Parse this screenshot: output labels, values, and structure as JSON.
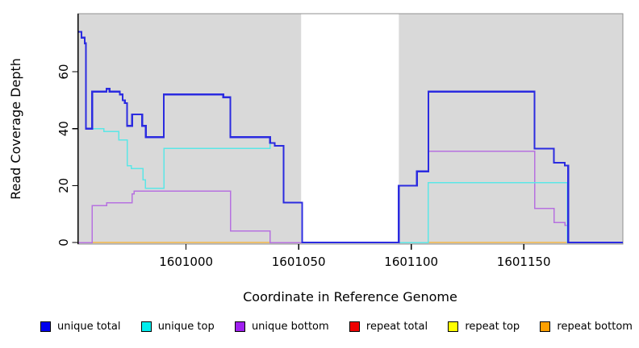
{
  "figure": {
    "xlabel": "Coordinate in Reference Genome",
    "ylabel": "Read Coverage Depth"
  },
  "chart_data": {
    "type": "line",
    "subtype": "step-after",
    "title": "",
    "xlabel": "Coordinate in Reference Genome",
    "ylabel": "Read Coverage Depth",
    "xlim": [
      1600952,
      1601194
    ],
    "ylim": [
      0,
      80
    ],
    "x_ticks": [
      1601000,
      1601050,
      1601100,
      1601150
    ],
    "y_ticks": [
      0,
      20,
      40,
      60
    ],
    "grid": false,
    "legend_position": "bottom",
    "background": {
      "page_bg": "#ffffff",
      "plot_bg": "#d9d9d9",
      "gap_region": [
        1601051.1,
        1601094.5
      ],
      "gap_color": "#ffffff",
      "border_color": "#8f8f8f",
      "axis_color": "#000000",
      "tick_label_color": "#000000"
    },
    "series": [
      {
        "name": "repeat total",
        "color": "#ee0000",
        "line_width": 1.4,
        "x_end": 1601194,
        "points": [
          [
            1600958.3,
            0
          ]
        ]
      },
      {
        "name": "repeat top",
        "color": "#ffee00",
        "line_width": 1.4,
        "x_end": 1601194,
        "points": [
          [
            1600958.3,
            0
          ]
        ]
      },
      {
        "name": "repeat bottom",
        "color": "#ffa500",
        "line_width": 1.4,
        "x_end": 1601194,
        "points": [
          [
            1600958.3,
            0
          ]
        ]
      },
      {
        "name": "unique bottom",
        "color": "#b671e0",
        "line_width": 1.5,
        "x_end": 1601194,
        "points": [
          [
            1600952,
            0
          ],
          [
            1600958.3,
            13
          ],
          [
            1600964.7,
            14
          ],
          [
            1600976,
            17
          ],
          [
            1600977,
            18
          ],
          [
            1601019.7,
            4
          ],
          [
            1601037.3,
            0
          ],
          [
            1601094.5,
            20
          ],
          [
            1601102.5,
            25
          ],
          [
            1601107.6,
            32
          ],
          [
            1601154.8,
            12
          ],
          [
            1601163.4,
            7
          ],
          [
            1601168.2,
            6
          ],
          [
            1601169.7,
            0
          ]
        ]
      },
      {
        "name": "unique top",
        "color": "#5ce6e6",
        "line_width": 1.5,
        "x_end": 1601194,
        "points": [
          [
            1600952,
            74
          ],
          [
            1600953.5,
            72
          ],
          [
            1600955,
            70
          ],
          [
            1600955.5,
            40
          ],
          [
            1600963.5,
            39
          ],
          [
            1600970.2,
            36
          ],
          [
            1600973.8,
            27
          ],
          [
            1600975.7,
            26
          ],
          [
            1600980.9,
            22
          ],
          [
            1600982,
            19
          ],
          [
            1600990.1,
            33
          ],
          [
            1601037.3,
            35
          ],
          [
            1601039.4,
            34
          ],
          [
            1601043.3,
            14
          ],
          [
            1601051.6,
            0
          ],
          [
            1601107.6,
            21
          ],
          [
            1601169.4,
            0
          ]
        ]
      },
      {
        "name": "unique total",
        "color": "#2b2be0",
        "line_width": 2.2,
        "x_end": 1601194,
        "points": [
          [
            1600952,
            74
          ],
          [
            1600953.5,
            72
          ],
          [
            1600955,
            70
          ],
          [
            1600955.5,
            40
          ],
          [
            1600958.3,
            53
          ],
          [
            1600964.7,
            54
          ],
          [
            1600966,
            53
          ],
          [
            1600970.6,
            52
          ],
          [
            1600971.8,
            50
          ],
          [
            1600972.8,
            49
          ],
          [
            1600973.8,
            41
          ],
          [
            1600976,
            45
          ],
          [
            1600980.5,
            41
          ],
          [
            1600982.1,
            37
          ],
          [
            1600990.1,
            52
          ],
          [
            1601016.5,
            51
          ],
          [
            1601019.7,
            37
          ],
          [
            1601037.3,
            35
          ],
          [
            1601039.4,
            34
          ],
          [
            1601043.3,
            14
          ],
          [
            1601051.6,
            0
          ],
          [
            1601094.5,
            20
          ],
          [
            1601102.5,
            25
          ],
          [
            1601107.6,
            53
          ],
          [
            1601154.8,
            33
          ],
          [
            1601163.4,
            28
          ],
          [
            1601168.2,
            27
          ],
          [
            1601169.7,
            0
          ]
        ]
      }
    ]
  },
  "legend": {
    "items": [
      {
        "label": "unique total",
        "color": "#0000ee"
      },
      {
        "label": "unique top",
        "color": "#00eeee"
      },
      {
        "label": "unique bottom",
        "color": "#a020f0"
      },
      {
        "label": "repeat total",
        "color": "#ee0000"
      },
      {
        "label": "repeat top",
        "color": "#ffff00"
      },
      {
        "label": "repeat bottom",
        "color": "#ffa000"
      }
    ]
  }
}
